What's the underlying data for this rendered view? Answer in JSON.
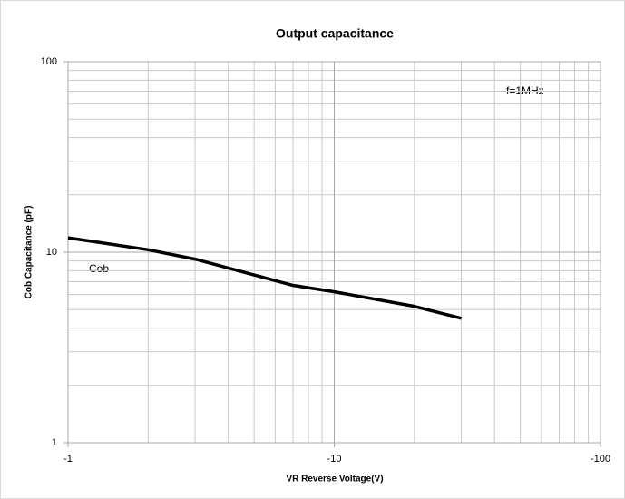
{
  "chart_data": {
    "type": "line",
    "title": "Output capacitance",
    "xlabel": "VR Reverse Voltage(V)",
    "ylabel": "Cob Capacitance (pF)",
    "annotations": [
      "f=1MHz"
    ],
    "xscale": "log",
    "yscale": "log",
    "grid": true,
    "x": [
      -1,
      -2,
      -3,
      -5,
      -7,
      -10,
      -20,
      -30
    ],
    "series": [
      {
        "name": "Cob",
        "color": "#000000",
        "values": [
          11.9,
          10.3,
          9.2,
          7.6,
          6.7,
          6.2,
          5.2,
          4.5
        ]
      }
    ],
    "xlim": [
      -1,
      -100
    ],
    "xticks": [
      -1,
      -10,
      -100
    ],
    "xminor": [
      -2,
      -3,
      -4,
      -5,
      -6,
      -7,
      -8,
      -9,
      -20,
      -30,
      -40,
      -50,
      -60,
      -70,
      -80,
      -90
    ],
    "ylim": [
      1,
      100
    ],
    "yticks": [
      1,
      10,
      100
    ],
    "yminor": [
      2,
      3,
      4,
      5,
      6,
      7,
      8,
      9,
      20,
      30,
      40,
      50,
      60,
      70,
      80,
      90
    ]
  }
}
